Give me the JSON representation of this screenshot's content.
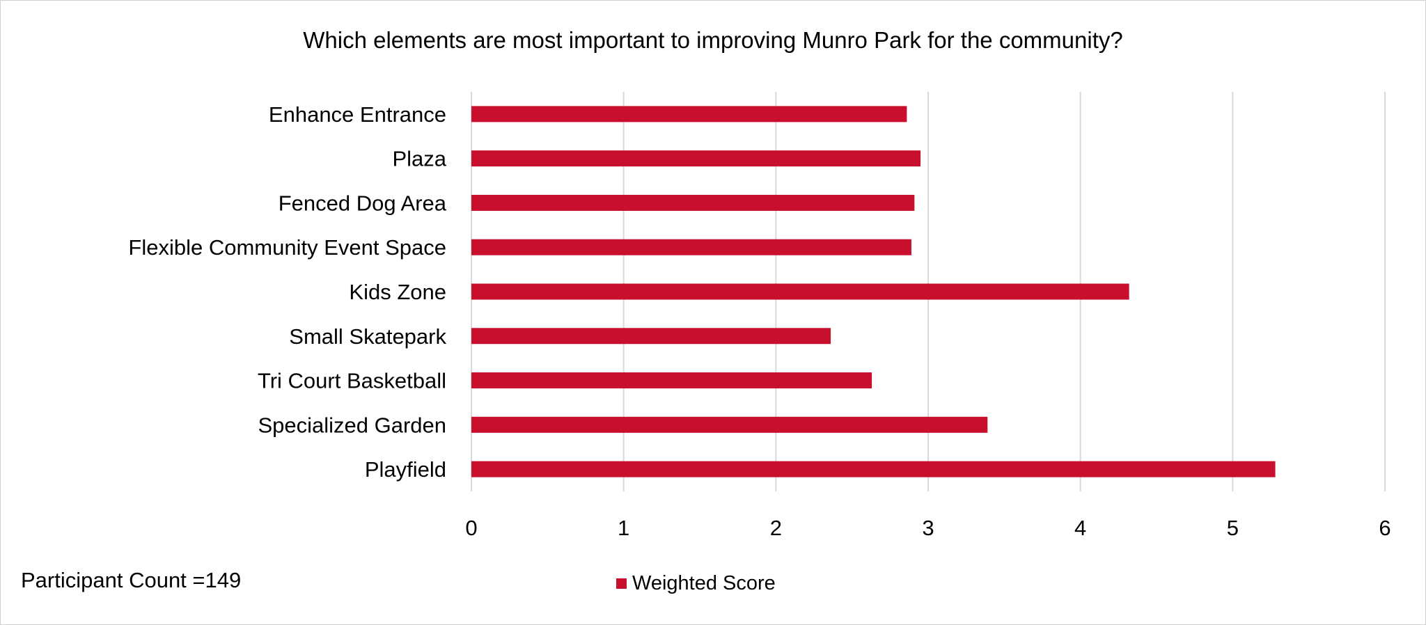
{
  "chart_data": {
    "type": "bar",
    "orientation": "horizontal",
    "title": "Which elements are most important to improving Munro Park for the community?",
    "categories": [
      "Enhance Entrance",
      "Plaza",
      "Fenced Dog Area",
      "Flexible Community Event Space",
      "Kids Zone",
      "Small Skatepark",
      "Tri Court Basketball",
      "Specialized Garden",
      "Playfield"
    ],
    "series": [
      {
        "name": "Weighted Score",
        "values": [
          2.86,
          2.95,
          2.91,
          2.89,
          4.32,
          2.36,
          2.63,
          3.39,
          5.28
        ],
        "color": "#c8102e"
      }
    ],
    "xlim": [
      0,
      6
    ],
    "xticks": [
      "0",
      "1",
      "2",
      "3",
      "4",
      "5",
      "6"
    ],
    "grid": true,
    "legend_position": "bottom",
    "annotation": "Participant Count =149"
  }
}
